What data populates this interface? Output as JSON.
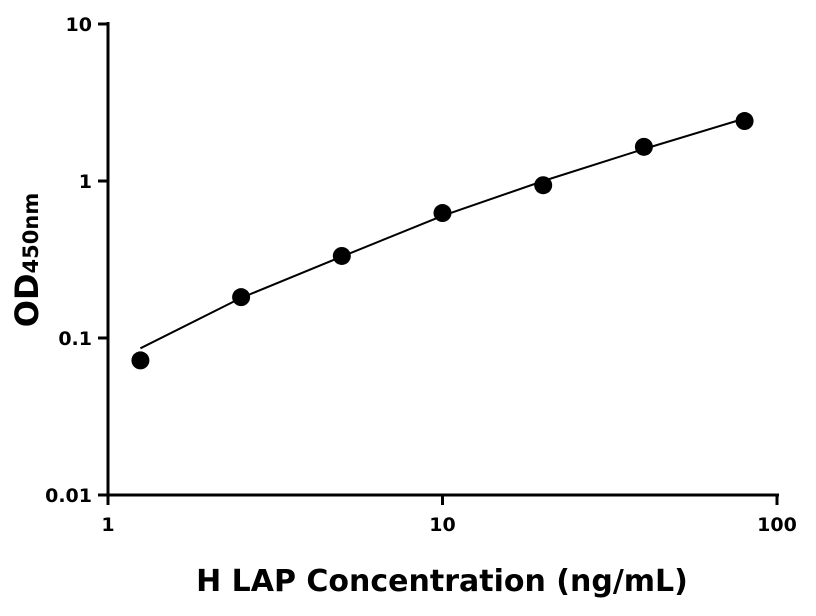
{
  "chart_data": {
    "type": "scatter",
    "x_label": "H LAP Concentration (ng/mL)",
    "y_label": {
      "main": "OD",
      "sub": "450nm"
    },
    "xscale": "log",
    "yscale": "log",
    "xlim": [
      1,
      100
    ],
    "xticks": [
      1,
      10,
      100
    ],
    "ylim": [
      0.01,
      10
    ],
    "yticks": [
      0.01,
      0.1,
      1,
      10
    ],
    "color": "#000000",
    "x": [
      1.25,
      2.5,
      5,
      10,
      20,
      40,
      80
    ],
    "values": [
      0.072,
      0.182,
      0.333,
      0.625,
      0.94,
      1.65,
      2.41
    ],
    "fit": {
      "color": "#000000",
      "x": [
        1.25,
        2.5,
        5,
        10,
        20,
        40,
        80
      ],
      "values": [
        0.086,
        0.18,
        0.33,
        0.6,
        1.0,
        1.6,
        2.5
      ]
    }
  }
}
